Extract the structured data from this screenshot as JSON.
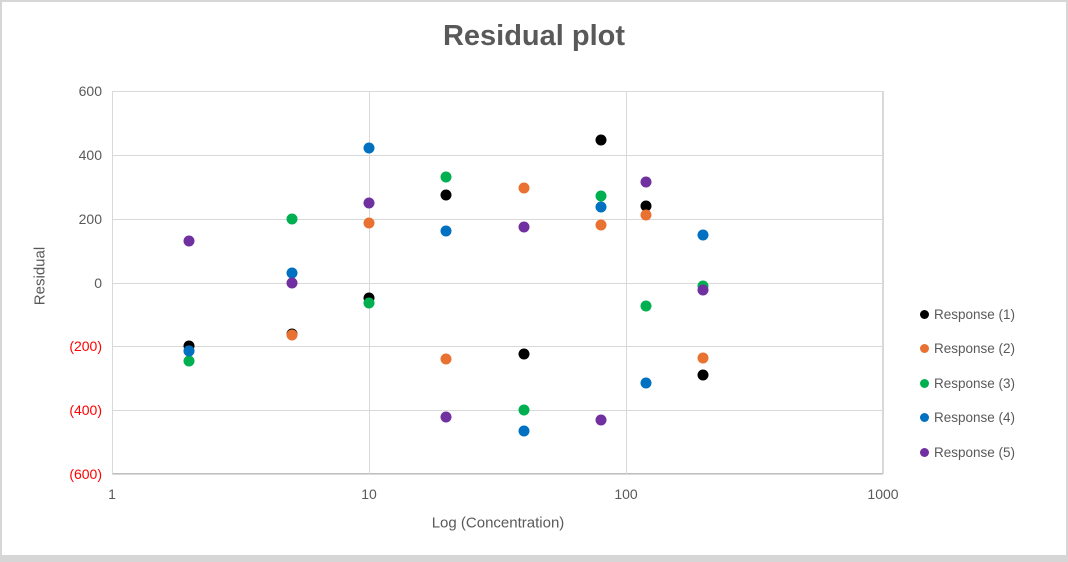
{
  "chart_data": {
    "type": "scatter",
    "title": "Residual plot",
    "xlabel": "Log (Concentration)",
    "ylabel": "Residual",
    "x_scale": "log",
    "xlim": [
      1,
      1000
    ],
    "ylim": [
      -600,
      600
    ],
    "grid": true,
    "legend_position": "right",
    "x_ticks": [
      {
        "label": "1",
        "value": 1
      },
      {
        "label": "10",
        "value": 10
      },
      {
        "label": "100",
        "value": 100
      },
      {
        "label": "1000",
        "value": 1000
      }
    ],
    "y_ticks": [
      {
        "label": "600",
        "value": 600,
        "color": "#595959"
      },
      {
        "label": "400",
        "value": 400,
        "color": "#595959"
      },
      {
        "label": "200",
        "value": 200,
        "color": "#595959"
      },
      {
        "label": "0",
        "value": 0,
        "color": "#595959"
      },
      {
        "label": "(200)",
        "value": -200,
        "color": "#ff0000"
      },
      {
        "label": "(400)",
        "value": -400,
        "color": "#ff0000"
      },
      {
        "label": "(600)",
        "value": -600,
        "color": "#ff0000"
      }
    ],
    "x": [
      2,
      5,
      10,
      20,
      40,
      80,
      120,
      200
    ],
    "series": [
      {
        "name": "Response (1)",
        "color": "#000000",
        "values": [
          -200,
          -160,
          -50,
          275,
          -225,
          445,
          240,
          -290
        ]
      },
      {
        "name": "Response (2)",
        "color": "#e97132",
        "values": [
          -215,
          -165,
          185,
          -240,
          295,
          180,
          210,
          -235
        ]
      },
      {
        "name": "Response (3)",
        "color": "#00b050",
        "values": [
          -245,
          200,
          -65,
          330,
          -400,
          270,
          -75,
          -10
        ]
      },
      {
        "name": "Response (4)",
        "color": "#0070c0",
        "values": [
          -215,
          30,
          420,
          160,
          -465,
          235,
          -315,
          150
        ]
      },
      {
        "name": "Response (5)",
        "color": "#7030a0",
        "values": [
          130,
          0,
          250,
          -420,
          175,
          -430,
          315,
          -25
        ]
      }
    ]
  }
}
